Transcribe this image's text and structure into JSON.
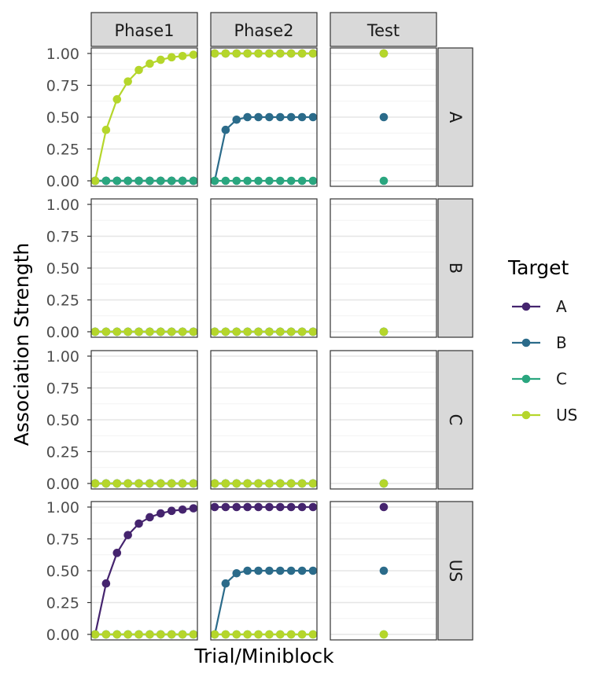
{
  "chart_data": {
    "type": "line",
    "xlabel": "Trial/Miniblock",
    "ylabel": "Association Strength",
    "ylim": [
      0,
      1
    ],
    "y_ticks": [
      "0.00",
      "0.25",
      "0.50",
      "0.75",
      "1.00"
    ],
    "grid": true,
    "legend_placement": "right",
    "column_facets": [
      "Phase1",
      "Phase2",
      "Test"
    ],
    "row_facets": [
      "A",
      "B",
      "C",
      "US"
    ],
    "legend": {
      "title": "Target",
      "entries": [
        "A",
        "B",
        "C",
        "US"
      ]
    },
    "colors": {
      "A": "#45246e",
      "B": "#2b6b8a",
      "C": "#2aa67f",
      "US": "#b5d62b"
    },
    "panels": {
      "A": {
        "Phase1": {
          "x": [
            1,
            2,
            3,
            4,
            5,
            6,
            7,
            8,
            9,
            10
          ],
          "series": [
            {
              "name": "A",
              "values": [
                0,
                0,
                0,
                0,
                0,
                0,
                0,
                0,
                0,
                0
              ]
            },
            {
              "name": "B",
              "values": [
                0,
                0,
                0,
                0,
                0,
                0,
                0,
                0,
                0,
                0
              ]
            },
            {
              "name": "C",
              "values": [
                0,
                0,
                0,
                0,
                0,
                0,
                0,
                0,
                0,
                0
              ]
            },
            {
              "name": "US",
              "values": [
                0,
                0.4,
                0.64,
                0.78,
                0.87,
                0.92,
                0.95,
                0.97,
                0.98,
                0.99
              ]
            }
          ]
        },
        "Phase2": {
          "x": [
            1,
            2,
            3,
            4,
            5,
            6,
            7,
            8,
            9,
            10
          ],
          "series": [
            {
              "name": "A",
              "values": [
                1,
                1,
                1,
                1,
                1,
                1,
                1,
                1,
                1,
                1
              ]
            },
            {
              "name": "B",
              "values": [
                0,
                0.4,
                0.48,
                0.5,
                0.5,
                0.5,
                0.5,
                0.5,
                0.5,
                0.5
              ]
            },
            {
              "name": "C",
              "values": [
                0,
                0,
                0,
                0,
                0,
                0,
                0,
                0,
                0,
                0
              ]
            },
            {
              "name": "US",
              "values": [
                1,
                1,
                1,
                1,
                1,
                1,
                1,
                1,
                1,
                1
              ]
            }
          ]
        },
        "Test": {
          "x": [
            1
          ],
          "series": [
            {
              "name": "A",
              "values": [
                1.0
              ]
            },
            {
              "name": "B",
              "values": [
                0.5
              ]
            },
            {
              "name": "C",
              "values": [
                0
              ]
            },
            {
              "name": "US",
              "values": [
                1.0
              ]
            }
          ]
        }
      },
      "B": {
        "Phase1": {
          "x": [
            1,
            2,
            3,
            4,
            5,
            6,
            7,
            8,
            9,
            10
          ],
          "series": [
            {
              "name": "A",
              "values": [
                0,
                0,
                0,
                0,
                0,
                0,
                0,
                0,
                0,
                0
              ]
            },
            {
              "name": "B",
              "values": [
                0,
                0,
                0,
                0,
                0,
                0,
                0,
                0,
                0,
                0
              ]
            },
            {
              "name": "C",
              "values": [
                0,
                0,
                0,
                0,
                0,
                0,
                0,
                0,
                0,
                0
              ]
            },
            {
              "name": "US",
              "values": [
                0,
                0,
                0,
                0,
                0,
                0,
                0,
                0,
                0,
                0
              ]
            }
          ]
        },
        "Phase2": {
          "x": [
            1,
            2,
            3,
            4,
            5,
            6,
            7,
            8,
            9,
            10
          ],
          "series": [
            {
              "name": "A",
              "values": [
                0,
                0,
                0,
                0,
                0,
                0,
                0,
                0,
                0,
                0
              ]
            },
            {
              "name": "B",
              "values": [
                0,
                0,
                0,
                0,
                0,
                0,
                0,
                0,
                0,
                0
              ]
            },
            {
              "name": "C",
              "values": [
                0,
                0,
                0,
                0,
                0,
                0,
                0,
                0,
                0,
                0
              ]
            },
            {
              "name": "US",
              "values": [
                0,
                0,
                0,
                0,
                0,
                0,
                0,
                0,
                0,
                0
              ]
            }
          ]
        },
        "Test": {
          "x": [
            1
          ],
          "series": [
            {
              "name": "A",
              "values": [
                0
              ]
            },
            {
              "name": "B",
              "values": [
                0
              ]
            },
            {
              "name": "C",
              "values": [
                0
              ]
            },
            {
              "name": "US",
              "values": [
                0
              ]
            }
          ]
        }
      },
      "C": {
        "Phase1": {
          "x": [
            1,
            2,
            3,
            4,
            5,
            6,
            7,
            8,
            9,
            10
          ],
          "series": [
            {
              "name": "A",
              "values": [
                0,
                0,
                0,
                0,
                0,
                0,
                0,
                0,
                0,
                0
              ]
            },
            {
              "name": "B",
              "values": [
                0,
                0,
                0,
                0,
                0,
                0,
                0,
                0,
                0,
                0
              ]
            },
            {
              "name": "C",
              "values": [
                0,
                0,
                0,
                0,
                0,
                0,
                0,
                0,
                0,
                0
              ]
            },
            {
              "name": "US",
              "values": [
                0,
                0,
                0,
                0,
                0,
                0,
                0,
                0,
                0,
                0
              ]
            }
          ]
        },
        "Phase2": {
          "x": [
            1,
            2,
            3,
            4,
            5,
            6,
            7,
            8,
            9,
            10
          ],
          "series": [
            {
              "name": "A",
              "values": [
                0,
                0,
                0,
                0,
                0,
                0,
                0,
                0,
                0,
                0
              ]
            },
            {
              "name": "B",
              "values": [
                0,
                0,
                0,
                0,
                0,
                0,
                0,
                0,
                0,
                0
              ]
            },
            {
              "name": "C",
              "values": [
                0,
                0,
                0,
                0,
                0,
                0,
                0,
                0,
                0,
                0
              ]
            },
            {
              "name": "US",
              "values": [
                0,
                0,
                0,
                0,
                0,
                0,
                0,
                0,
                0,
                0
              ]
            }
          ]
        },
        "Test": {
          "x": [
            1
          ],
          "series": [
            {
              "name": "A",
              "values": [
                0
              ]
            },
            {
              "name": "B",
              "values": [
                0
              ]
            },
            {
              "name": "C",
              "values": [
                0
              ]
            },
            {
              "name": "US",
              "values": [
                0
              ]
            }
          ]
        }
      },
      "US": {
        "Phase1": {
          "x": [
            1,
            2,
            3,
            4,
            5,
            6,
            7,
            8,
            9,
            10
          ],
          "series": [
            {
              "name": "A",
              "values": [
                0,
                0.4,
                0.64,
                0.78,
                0.87,
                0.92,
                0.95,
                0.97,
                0.98,
                0.99
              ]
            },
            {
              "name": "B",
              "values": [
                0,
                0,
                0,
                0,
                0,
                0,
                0,
                0,
                0,
                0
              ]
            },
            {
              "name": "C",
              "values": [
                0,
                0,
                0,
                0,
                0,
                0,
                0,
                0,
                0,
                0
              ]
            },
            {
              "name": "US",
              "values": [
                0,
                0,
                0,
                0,
                0,
                0,
                0,
                0,
                0,
                0
              ]
            }
          ]
        },
        "Phase2": {
          "x": [
            1,
            2,
            3,
            4,
            5,
            6,
            7,
            8,
            9,
            10
          ],
          "series": [
            {
              "name": "A",
              "values": [
                1,
                1,
                1,
                1,
                1,
                1,
                1,
                1,
                1,
                1
              ]
            },
            {
              "name": "B",
              "values": [
                0,
                0.4,
                0.48,
                0.5,
                0.5,
                0.5,
                0.5,
                0.5,
                0.5,
                0.5
              ]
            },
            {
              "name": "C",
              "values": [
                0,
                0,
                0,
                0,
                0,
                0,
                0,
                0,
                0,
                0
              ]
            },
            {
              "name": "US",
              "values": [
                0,
                0,
                0,
                0,
                0,
                0,
                0,
                0,
                0,
                0
              ]
            }
          ]
        },
        "Test": {
          "x": [
            1
          ],
          "series": [
            {
              "name": "A",
              "values": [
                1.0
              ]
            },
            {
              "name": "B",
              "values": [
                0.5
              ]
            },
            {
              "name": "C",
              "values": [
                0
              ]
            },
            {
              "name": "US",
              "values": [
                0
              ]
            }
          ]
        }
      }
    }
  }
}
